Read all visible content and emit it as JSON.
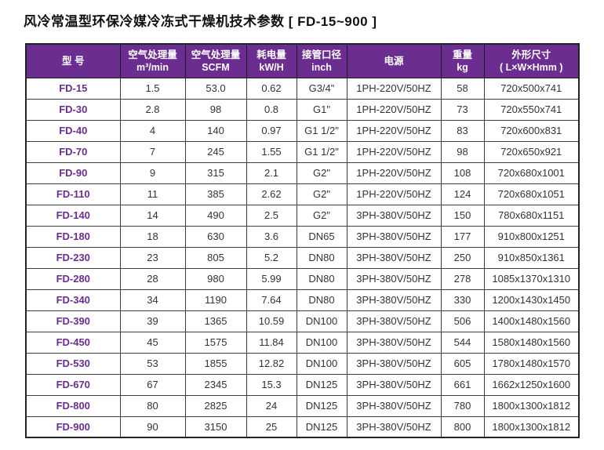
{
  "page": {
    "title": "风冷常温型环保冷媒冷冻式干燥机技术参数 [ FD-15~900 ]"
  },
  "colors": {
    "header_bg": "#6C2D90",
    "header_text": "#ffffff",
    "model_text": "#6B2D91",
    "cell_text": "#333333",
    "border": "#3c3c3c"
  },
  "table": {
    "columns": [
      {
        "id": "model",
        "line1": "型  号",
        "line2": ""
      },
      {
        "id": "airflow-m3",
        "line1": "空气处理量",
        "line2": "m³/min"
      },
      {
        "id": "airflow-scfm",
        "line1": "空气处理量",
        "line2": "SCFM"
      },
      {
        "id": "power",
        "line1": "耗电量",
        "line2": "kW/H"
      },
      {
        "id": "pipe",
        "line1": "接管口径",
        "line2": "inch"
      },
      {
        "id": "supply",
        "line1": "电源",
        "line2": ""
      },
      {
        "id": "weight",
        "line1": "重量",
        "line2": "kg"
      },
      {
        "id": "dims",
        "line1": "外形尺寸",
        "line2": "( L×W×Hmm )"
      }
    ],
    "rows": [
      [
        "FD-15",
        "1.5",
        "53.0",
        "0.62",
        "G3/4\"",
        "1PH-220V/50HZ",
        "58",
        "720x500x741"
      ],
      [
        "FD-30",
        "2.8",
        "98",
        "0.8",
        "G1\"",
        "1PH-220V/50HZ",
        "73",
        "720x550x741"
      ],
      [
        "FD-40",
        "4",
        "140",
        "0.97",
        "G1 1/2\"",
        "1PH-220V/50HZ",
        "83",
        "720x600x831"
      ],
      [
        "FD-70",
        "7",
        "245",
        "1.55",
        "G1 1/2\"",
        "1PH-220V/50HZ",
        "98",
        "720x650x921"
      ],
      [
        "FD-90",
        "9",
        "315",
        "2.1",
        "G2\"",
        "1PH-220V/50HZ",
        "108",
        "720x680x1001"
      ],
      [
        "FD-110",
        "11",
        "385",
        "2.62",
        "G2\"",
        "1PH-220V/50HZ",
        "124",
        "720x680x1051"
      ],
      [
        "FD-140",
        "14",
        "490",
        "2.5",
        "G2\"",
        "3PH-380V/50HZ",
        "150",
        "780x680x1151"
      ],
      [
        "FD-180",
        "18",
        "630",
        "3.6",
        "DN65",
        "3PH-380V/50HZ",
        "177",
        "910x800x1251"
      ],
      [
        "FD-230",
        "23",
        "805",
        "5.2",
        "DN80",
        "3PH-380V/50HZ",
        "250",
        "910x850x1361"
      ],
      [
        "FD-280",
        "28",
        "980",
        "5.99",
        "DN80",
        "3PH-380V/50HZ",
        "278",
        "1085x1370x1310"
      ],
      [
        "FD-340",
        "34",
        "1190",
        "7.64",
        "DN80",
        "3PH-380V/50HZ",
        "330",
        "1200x1430x1450"
      ],
      [
        "FD-390",
        "39",
        "1365",
        "10.59",
        "DN100",
        "3PH-380V/50HZ",
        "506",
        "1400x1480x1560"
      ],
      [
        "FD-450",
        "45",
        "1575",
        "11.84",
        "DN100",
        "3PH-380V/50HZ",
        "544",
        "1580x1480x1560"
      ],
      [
        "FD-530",
        "53",
        "1855",
        "12.82",
        "DN100",
        "3PH-380V/50HZ",
        "605",
        "1780x1480x1570"
      ],
      [
        "FD-670",
        "67",
        "2345",
        "15.3",
        "DN125",
        "3PH-380V/50HZ",
        "661",
        "1662x1250x1600"
      ],
      [
        "FD-800",
        "80",
        "2825",
        "24",
        "DN125",
        "3PH-380V/50HZ",
        "780",
        "1800x1300x1812"
      ],
      [
        "FD-900",
        "90",
        "3150",
        "25",
        "DN125",
        "3PH-380V/50HZ",
        "800",
        "1800x1300x1812"
      ]
    ]
  }
}
